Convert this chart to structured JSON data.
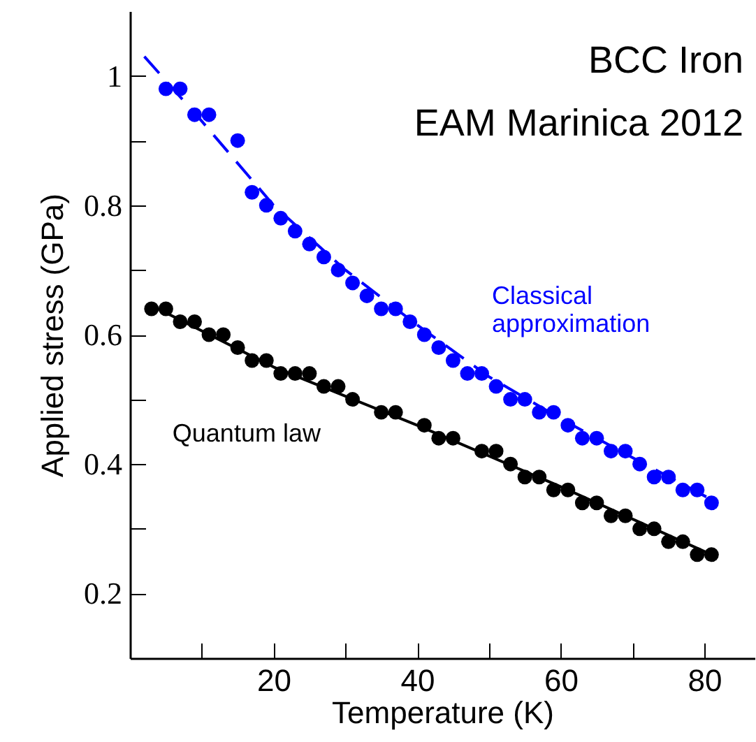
{
  "chart_data": {
    "type": "scatter",
    "title": "BCC Iron",
    "subtitle": "EAM Marinica 2012",
    "xlabel": "Temperature (K)",
    "ylabel": "Applied stress (GPa)",
    "xlim": [
      0,
      87
    ],
    "ylim": [
      0.1,
      1.1
    ],
    "xticks": [
      {
        "value": 10,
        "label": null
      },
      20,
      {
        "value": 30,
        "label": null
      },
      40,
      {
        "value": 50,
        "label": null
      },
      60,
      {
        "value": 70,
        "label": null
      },
      80
    ],
    "yticks": [
      0.2,
      {
        "value": 0.3,
        "label": null
      },
      0.4,
      {
        "value": 0.5,
        "label": null
      },
      0.6,
      {
        "value": 0.7,
        "label": null
      },
      0.8,
      {
        "value": 0.9,
        "label": null
      },
      1
    ],
    "grid": false,
    "marker": "circle",
    "series": [
      {
        "name": "Classical approximation",
        "color": "#0000ff",
        "x": [
          5,
          7,
          9,
          11,
          15,
          17,
          19,
          21,
          23,
          25,
          27,
          29,
          31,
          33,
          35,
          37,
          39,
          41,
          43,
          45,
          47,
          49,
          51,
          53,
          55,
          57,
          59,
          61,
          63,
          65,
          67,
          69,
          71,
          73,
          75,
          77,
          79,
          81
        ],
        "values": [
          0.98,
          0.98,
          0.94,
          0.94,
          0.9,
          0.82,
          0.8,
          0.78,
          0.76,
          0.74,
          0.72,
          0.7,
          0.68,
          0.66,
          0.64,
          0.64,
          0.62,
          0.6,
          0.58,
          0.56,
          0.54,
          0.54,
          0.52,
          0.5,
          0.5,
          0.48,
          0.48,
          0.46,
          0.44,
          0.44,
          0.42,
          0.42,
          0.4,
          0.38,
          0.38,
          0.36,
          0.36,
          0.34
        ]
      },
      {
        "name": "Quantum law",
        "color": "#000000",
        "x": [
          3,
          5,
          7,
          9,
          11,
          13,
          15,
          17,
          19,
          21,
          23,
          25,
          27,
          29,
          31,
          35,
          37,
          41,
          43,
          45,
          49,
          51,
          53,
          55,
          57,
          59,
          61,
          63,
          65,
          67,
          69,
          71,
          73,
          75,
          77,
          79,
          81
        ],
        "values": [
          0.64,
          0.64,
          0.62,
          0.62,
          0.6,
          0.6,
          0.58,
          0.56,
          0.56,
          0.54,
          0.54,
          0.54,
          0.52,
          0.52,
          0.5,
          0.48,
          0.48,
          0.46,
          0.44,
          0.44,
          0.42,
          0.42,
          0.4,
          0.38,
          0.38,
          0.36,
          0.36,
          0.34,
          0.34,
          0.32,
          0.32,
          0.3,
          0.3,
          0.28,
          0.28,
          0.26,
          0.26
        ]
      },
      {
        "type": "line",
        "marker": "none",
        "line_style": "dashed",
        "color": "#0000ff",
        "x": [
          2,
          10,
          20,
          30,
          40,
          50,
          60,
          70,
          81
        ],
        "values": [
          1.03,
          0.93,
          0.8,
          0.7,
          0.615,
          0.535,
          0.47,
          0.41,
          0.345
        ]
      },
      {
        "type": "line",
        "marker": "none",
        "line_style": "solid",
        "color": "#000000",
        "x": [
          3,
          20,
          40,
          60,
          81
        ],
        "values": [
          0.645,
          0.55,
          0.46,
          0.365,
          0.26
        ]
      }
    ]
  }
}
